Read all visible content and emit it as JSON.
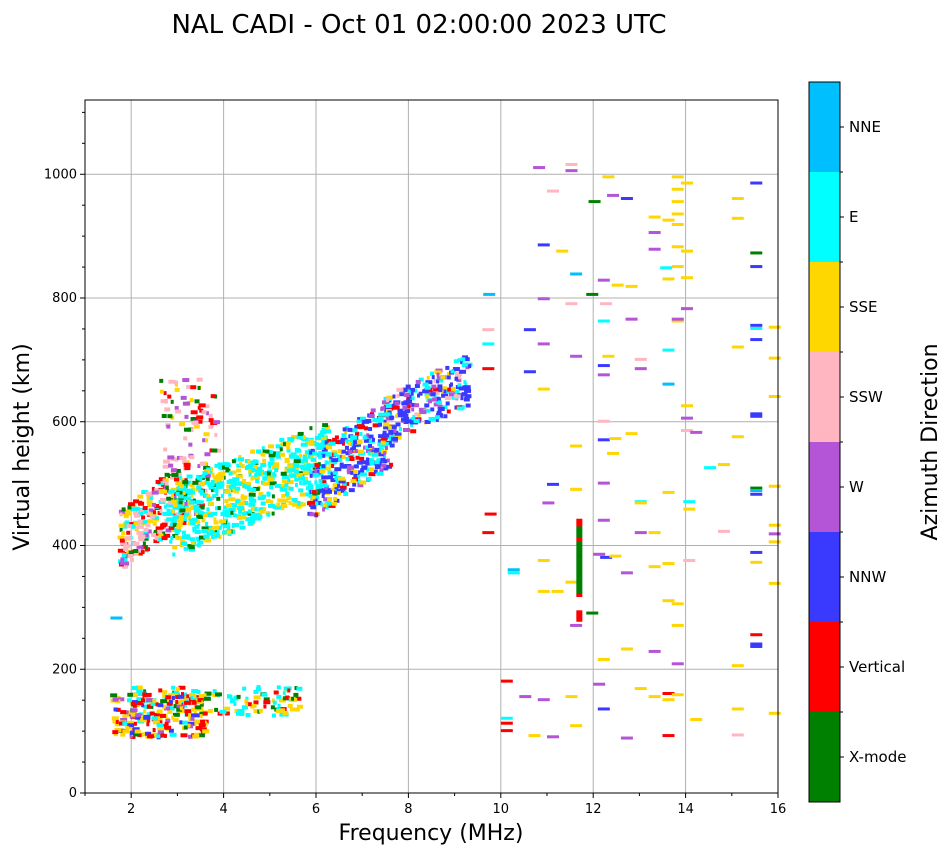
{
  "chart_data": {
    "type": "scatter",
    "title": "NAL CADI - Oct 01 02:00:00 2023 UTC",
    "xlabel": "Frequency (MHz)",
    "ylabel": "Virtual height (km)",
    "xlim": [
      1.0,
      16.0
    ],
    "ylim": [
      0,
      1120
    ],
    "xticks": [
      2,
      4,
      6,
      8,
      10,
      12,
      14,
      16
    ],
    "yticks": [
      0,
      200,
      400,
      600,
      800,
      1000
    ],
    "grid": true,
    "colorbar": {
      "title": "Azimuth Direction",
      "categories": [
        {
          "name": "X-mode",
          "color": "#008000"
        },
        {
          "name": "Vertical",
          "color": "#ff0000"
        },
        {
          "name": "NNW",
          "color": "#3a3aff"
        },
        {
          "name": "W",
          "color": "#b355d6"
        },
        {
          "name": "SSW",
          "color": "#ffb6c1"
        },
        {
          "name": "SSE",
          "color": "#ffd700"
        },
        {
          "name": "E",
          "color": "#00ffff"
        },
        {
          "name": "NNE",
          "color": "#00bfff"
        }
      ]
    },
    "clusters": [
      {
        "name": "E",
        "x": [
          1.9,
          5.6
        ],
        "y": [
          125,
          172
        ],
        "n": 160,
        "mix": {
          "E": 5,
          "SSE": 3,
          "Vertical": 2,
          "X-mode": 1
        }
      },
      {
        "name": "Vertical",
        "x": [
          1.5,
          3.6
        ],
        "y": [
          90,
          160
        ],
        "n": 200,
        "mix": {
          "SSE": 4,
          "Vertical": 3,
          "NNW": 1,
          "W": 1,
          "X-mode": 1,
          "E": 1
        }
      },
      {
        "name": "SSW",
        "x": [
          1.7,
          3.2
        ],
        "y": [
          360,
          540
        ],
        "n": 240,
        "mix": {
          "Vertical": 3,
          "SSW": 3,
          "E": 3,
          "SSE": 2,
          "X-mode": 1,
          "W": 1
        }
      },
      {
        "name": "W",
        "x": [
          2.6,
          3.8
        ],
        "y": [
          450,
          670
        ],
        "n": 120,
        "mix": {
          "SSW": 3,
          "W": 2,
          "Vertical": 2,
          "X-mode": 1,
          "SSE": 1
        }
      },
      {
        "name": "E",
        "x": [
          2.8,
          6.2
        ],
        "y": [
          380,
          600
        ],
        "n": 600,
        "mix": {
          "E": 6,
          "SSE": 3,
          "X-mode": 1
        }
      },
      {
        "name": "NNW",
        "x": [
          5.8,
          7.6
        ],
        "y": [
          440,
          640
        ],
        "n": 320,
        "mix": {
          "NNW": 4,
          "E": 3,
          "SSE": 2,
          "W": 1,
          "Vertical": 1
        }
      },
      {
        "name": "NNW",
        "x": [
          7.4,
          9.3
        ],
        "y": [
          560,
          710
        ],
        "n": 220,
        "mix": {
          "NNW": 5,
          "W": 2,
          "E": 2,
          "SSE": 1,
          "SSW": 1,
          "Vertical": 1
        }
      }
    ],
    "scattered": [
      {
        "x": 1.55,
        "y": 282,
        "c": "NNE"
      },
      {
        "x": 9.6,
        "y": 420,
        "c": "Vertical"
      },
      {
        "x": 9.65,
        "y": 450,
        "c": "Vertical"
      },
      {
        "x": 9.6,
        "y": 685,
        "c": "Vertical"
      },
      {
        "x": 9.6,
        "y": 725,
        "c": "E"
      },
      {
        "x": 9.6,
        "y": 748,
        "c": "SSW"
      },
      {
        "x": 9.62,
        "y": 805,
        "c": "NNE"
      },
      {
        "x": 10.0,
        "y": 100,
        "c": "Vertical"
      },
      {
        "x": 10.0,
        "y": 112,
        "c": "Vertical"
      },
      {
        "x": 10.0,
        "y": 120,
        "c": "E"
      },
      {
        "x": 10.0,
        "y": 180,
        "c": "Vertical"
      },
      {
        "x": 10.15,
        "y": 360,
        "c": "NNE"
      },
      {
        "x": 10.15,
        "y": 355,
        "c": "E"
      },
      {
        "x": 10.4,
        "y": 155,
        "c": "W"
      },
      {
        "x": 10.6,
        "y": 92,
        "c": "SSE"
      },
      {
        "x": 10.8,
        "y": 150,
        "c": "W"
      },
      {
        "x": 11.0,
        "y": 90,
        "c": "W"
      },
      {
        "x": 10.5,
        "y": 680,
        "c": "NNW"
      },
      {
        "x": 10.5,
        "y": 748,
        "c": "NNW"
      },
      {
        "x": 10.8,
        "y": 885,
        "c": "NNW"
      },
      {
        "x": 10.8,
        "y": 798,
        "c": "W"
      },
      {
        "x": 10.7,
        "y": 1010,
        "c": "W"
      },
      {
        "x": 11.0,
        "y": 972,
        "c": "SSW"
      },
      {
        "x": 11.2,
        "y": 875,
        "c": "SSE"
      },
      {
        "x": 11.5,
        "y": 838,
        "c": "NNE"
      },
      {
        "x": 11.4,
        "y": 1005,
        "c": "W"
      },
      {
        "x": 11.4,
        "y": 1015,
        "c": "SSW"
      },
      {
        "x": 11.4,
        "y": 155,
        "c": "SSE"
      },
      {
        "x": 11.5,
        "y": 108,
        "c": "SSE"
      },
      {
        "x": 11.5,
        "y": 270,
        "c": "W"
      },
      {
        "x": 11.5,
        "y": 490,
        "c": "SSE"
      },
      {
        "x": 11.5,
        "y": 560,
        "c": "SSE"
      },
      {
        "x": 11.5,
        "y": 705,
        "c": "W"
      },
      {
        "x": 11.4,
        "y": 790,
        "c": "SSW"
      },
      {
        "x": 10.8,
        "y": 375,
        "c": "SSE"
      },
      {
        "x": 10.8,
        "y": 325,
        "c": "SSE"
      },
      {
        "x": 11.1,
        "y": 325,
        "c": "SSE"
      },
      {
        "x": 10.8,
        "y": 652,
        "c": "SSE"
      },
      {
        "x": 10.8,
        "y": 725,
        "c": "W"
      },
      {
        "x": 11.0,
        "y": 498,
        "c": "NNW"
      },
      {
        "x": 10.9,
        "y": 468,
        "c": "W"
      },
      {
        "x": 11.4,
        "y": 340,
        "c": "SSE"
      },
      {
        "x": 11.85,
        "y": 290,
        "c": "X-mode"
      },
      {
        "x": 11.9,
        "y": 955,
        "c": "X-mode"
      },
      {
        "x": 11.85,
        "y": 805,
        "c": "X-mode"
      },
      {
        "x": 12.0,
        "y": 175,
        "c": "W"
      },
      {
        "x": 12.1,
        "y": 135,
        "c": "NNW"
      },
      {
        "x": 12.1,
        "y": 215,
        "c": "SSE"
      },
      {
        "x": 12.0,
        "y": 385,
        "c": "W"
      },
      {
        "x": 12.1,
        "y": 440,
        "c": "W"
      },
      {
        "x": 12.15,
        "y": 380,
        "c": "NNW"
      },
      {
        "x": 12.1,
        "y": 500,
        "c": "W"
      },
      {
        "x": 12.1,
        "y": 570,
        "c": "NNW"
      },
      {
        "x": 12.1,
        "y": 600,
        "c": "SSW"
      },
      {
        "x": 12.1,
        "y": 690,
        "c": "NNW"
      },
      {
        "x": 12.1,
        "y": 675,
        "c": "W"
      },
      {
        "x": 12.1,
        "y": 762,
        "c": "E"
      },
      {
        "x": 12.15,
        "y": 790,
        "c": "SSW"
      },
      {
        "x": 12.1,
        "y": 828,
        "c": "W"
      },
      {
        "x": 12.2,
        "y": 705,
        "c": "SSE"
      },
      {
        "x": 12.3,
        "y": 548,
        "c": "SSE"
      },
      {
        "x": 12.35,
        "y": 382,
        "c": "SSE"
      },
      {
        "x": 12.35,
        "y": 572,
        "c": "SSE"
      },
      {
        "x": 12.3,
        "y": 965,
        "c": "W"
      },
      {
        "x": 12.6,
        "y": 960,
        "c": "NNW"
      },
      {
        "x": 12.4,
        "y": 820,
        "c": "SSE"
      },
      {
        "x": 12.7,
        "y": 818,
        "c": "SSE"
      },
      {
        "x": 12.6,
        "y": 355,
        "c": "W"
      },
      {
        "x": 12.7,
        "y": 580,
        "c": "SSE"
      },
      {
        "x": 12.7,
        "y": 765,
        "c": "W"
      },
      {
        "x": 12.6,
        "y": 88,
        "c": "W"
      },
      {
        "x": 12.6,
        "y": 232,
        "c": "SSE"
      },
      {
        "x": 12.2,
        "y": 995,
        "c": "SSE"
      },
      {
        "x": 12.9,
        "y": 420,
        "c": "W"
      },
      {
        "x": 12.9,
        "y": 470,
        "c": "E"
      },
      {
        "x": 12.9,
        "y": 468,
        "c": "SSE"
      },
      {
        "x": 12.9,
        "y": 700,
        "c": "SSW"
      },
      {
        "x": 12.9,
        "y": 685,
        "c": "W"
      },
      {
        "x": 12.9,
        "y": 168,
        "c": "SSE"
      },
      {
        "x": 13.2,
        "y": 420,
        "c": "SSE"
      },
      {
        "x": 13.2,
        "y": 365,
        "c": "SSE"
      },
      {
        "x": 13.2,
        "y": 228,
        "c": "W"
      },
      {
        "x": 13.2,
        "y": 155,
        "c": "SSE"
      },
      {
        "x": 13.2,
        "y": 930,
        "c": "SSE"
      },
      {
        "x": 13.2,
        "y": 905,
        "c": "W"
      },
      {
        "x": 13.2,
        "y": 878,
        "c": "W"
      },
      {
        "x": 13.5,
        "y": 150,
        "c": "SSE"
      },
      {
        "x": 13.5,
        "y": 160,
        "c": "Vertical"
      },
      {
        "x": 13.5,
        "y": 92,
        "c": "Vertical"
      },
      {
        "x": 13.5,
        "y": 310,
        "c": "SSE"
      },
      {
        "x": 13.5,
        "y": 370,
        "c": "SSE"
      },
      {
        "x": 13.5,
        "y": 485,
        "c": "SSE"
      },
      {
        "x": 13.5,
        "y": 660,
        "c": "NNE"
      },
      {
        "x": 13.5,
        "y": 715,
        "c": "E"
      },
      {
        "x": 13.45,
        "y": 848,
        "c": "E"
      },
      {
        "x": 13.5,
        "y": 830,
        "c": "SSE"
      },
      {
        "x": 13.5,
        "y": 925,
        "c": "SSE"
      },
      {
        "x": 13.7,
        "y": 995,
        "c": "SSE"
      },
      {
        "x": 13.7,
        "y": 975,
        "c": "SSE"
      },
      {
        "x": 13.7,
        "y": 955,
        "c": "SSE"
      },
      {
        "x": 13.7,
        "y": 935,
        "c": "SSE"
      },
      {
        "x": 13.7,
        "y": 918,
        "c": "SSE"
      },
      {
        "x": 13.7,
        "y": 882,
        "c": "SSE"
      },
      {
        "x": 13.7,
        "y": 850,
        "c": "SSE"
      },
      {
        "x": 13.7,
        "y": 762,
        "c": "SSE"
      },
      {
        "x": 13.7,
        "y": 765,
        "c": "W"
      },
      {
        "x": 13.7,
        "y": 305,
        "c": "SSE"
      },
      {
        "x": 13.7,
        "y": 270,
        "c": "SSE"
      },
      {
        "x": 13.7,
        "y": 208,
        "c": "W"
      },
      {
        "x": 13.7,
        "y": 158,
        "c": "SSE"
      },
      {
        "x": 13.9,
        "y": 985,
        "c": "SSE"
      },
      {
        "x": 13.9,
        "y": 875,
        "c": "SSE"
      },
      {
        "x": 13.9,
        "y": 832,
        "c": "SSE"
      },
      {
        "x": 13.9,
        "y": 782,
        "c": "W"
      },
      {
        "x": 13.9,
        "y": 625,
        "c": "SSE"
      },
      {
        "x": 13.9,
        "y": 605,
        "c": "W"
      },
      {
        "x": 13.9,
        "y": 585,
        "c": "SSW"
      },
      {
        "x": 13.95,
        "y": 470,
        "c": "E"
      },
      {
        "x": 13.95,
        "y": 458,
        "c": "SSE"
      },
      {
        "x": 13.95,
        "y": 375,
        "c": "SSW"
      },
      {
        "x": 14.1,
        "y": 582,
        "c": "W"
      },
      {
        "x": 14.1,
        "y": 118,
        "c": "SSE"
      },
      {
        "x": 14.4,
        "y": 525,
        "c": "E"
      },
      {
        "x": 14.7,
        "y": 530,
        "c": "SSE"
      },
      {
        "x": 14.7,
        "y": 422,
        "c": "SSW"
      },
      {
        "x": 15.0,
        "y": 960,
        "c": "SSE"
      },
      {
        "x": 15.0,
        "y": 928,
        "c": "SSE"
      },
      {
        "x": 15.0,
        "y": 720,
        "c": "SSE"
      },
      {
        "x": 15.0,
        "y": 575,
        "c": "SSE"
      },
      {
        "x": 15.0,
        "y": 205,
        "c": "SSE"
      },
      {
        "x": 15.0,
        "y": 135,
        "c": "SSE"
      },
      {
        "x": 15.0,
        "y": 93,
        "c": "SSW"
      },
      {
        "x": 15.4,
        "y": 985,
        "c": "NNW"
      },
      {
        "x": 15.4,
        "y": 872,
        "c": "X-mode"
      },
      {
        "x": 15.4,
        "y": 850,
        "c": "NNW"
      },
      {
        "x": 15.4,
        "y": 755,
        "c": "NNW"
      },
      {
        "x": 15.4,
        "y": 750,
        "c": "E"
      },
      {
        "x": 15.4,
        "y": 732,
        "c": "NNW"
      },
      {
        "x": 15.4,
        "y": 612,
        "c": "NNW"
      },
      {
        "x": 15.4,
        "y": 608,
        "c": "NNW"
      },
      {
        "x": 15.4,
        "y": 492,
        "c": "X-mode"
      },
      {
        "x": 15.4,
        "y": 488,
        "c": "NNE"
      },
      {
        "x": 15.4,
        "y": 482,
        "c": "NNW"
      },
      {
        "x": 15.4,
        "y": 388,
        "c": "NNW"
      },
      {
        "x": 15.4,
        "y": 372,
        "c": "SSE"
      },
      {
        "x": 15.4,
        "y": 255,
        "c": "Vertical"
      },
      {
        "x": 15.4,
        "y": 240,
        "c": "NNW"
      },
      {
        "x": 15.4,
        "y": 236,
        "c": "NNW"
      },
      {
        "x": 15.8,
        "y": 752,
        "c": "SSE"
      },
      {
        "x": 15.8,
        "y": 702,
        "c": "SSE"
      },
      {
        "x": 15.8,
        "y": 640,
        "c": "SSE"
      },
      {
        "x": 15.8,
        "y": 495,
        "c": "SSE"
      },
      {
        "x": 15.8,
        "y": 432,
        "c": "SSE"
      },
      {
        "x": 15.8,
        "y": 418,
        "c": "W"
      },
      {
        "x": 15.8,
        "y": 405,
        "c": "SSE"
      },
      {
        "x": 15.8,
        "y": 338,
        "c": "SSE"
      },
      {
        "x": 15.8,
        "y": 128,
        "c": "SSE"
      }
    ],
    "stacks": [
      {
        "x": 11.7,
        "y_from": 320,
        "y_to": 440,
        "colors": [
          "X-mode",
          "Vertical",
          "X-mode"
        ]
      },
      {
        "x": 11.7,
        "y_from": 280,
        "y_to": 295,
        "colors": [
          "Vertical"
        ]
      }
    ]
  }
}
